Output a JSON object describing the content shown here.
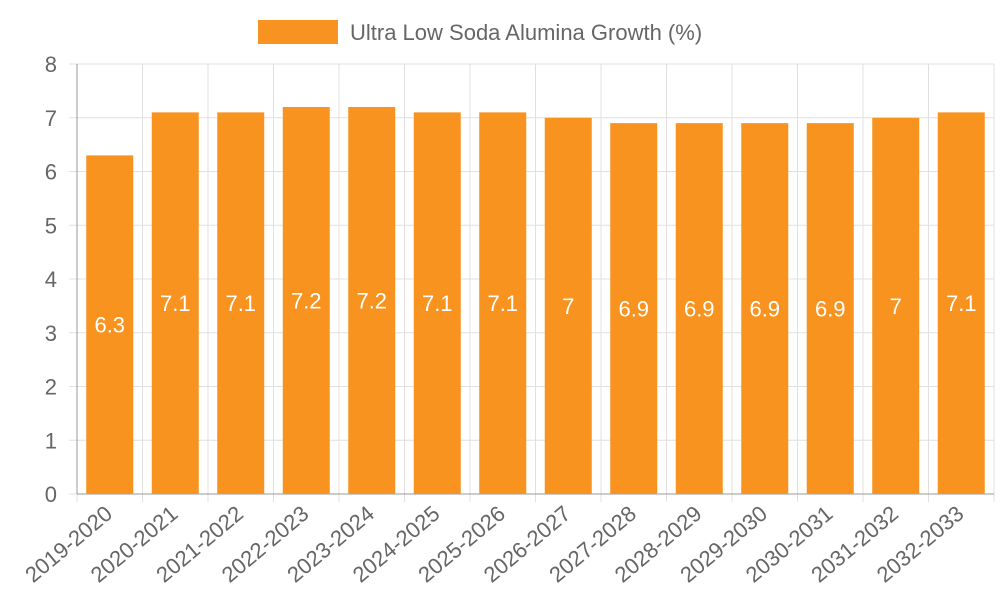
{
  "colors": {
    "bar": "#f7931e",
    "grid": "#e0e0e0",
    "axis": "#999999",
    "text": "#666666",
    "label": "#ffffff"
  },
  "chart_data": {
    "type": "bar",
    "title": "",
    "legend": [
      "Ultra Low Soda Alumina Growth (%)"
    ],
    "legend_position": "top",
    "xlabel": "",
    "ylabel": "",
    "categories": [
      "2019-2020",
      "2020-2021",
      "2021-2022",
      "2022-2023",
      "2023-2024",
      "2024-2025",
      "2025-2026",
      "2026-2027",
      "2027-2028",
      "2028-2029",
      "2029-2030",
      "2030-2031",
      "2031-2032",
      "2032-2033"
    ],
    "series": [
      {
        "name": "Ultra Low Soda Alumina Growth (%)",
        "values": [
          6.3,
          7.1,
          7.1,
          7.2,
          7.2,
          7.1,
          7.1,
          7,
          6.9,
          6.9,
          6.9,
          6.9,
          7,
          7.1
        ]
      }
    ],
    "ylim": [
      0,
      8
    ],
    "yticks": [
      0,
      1,
      2,
      3,
      4,
      5,
      6,
      7,
      8
    ],
    "grid": true
  }
}
